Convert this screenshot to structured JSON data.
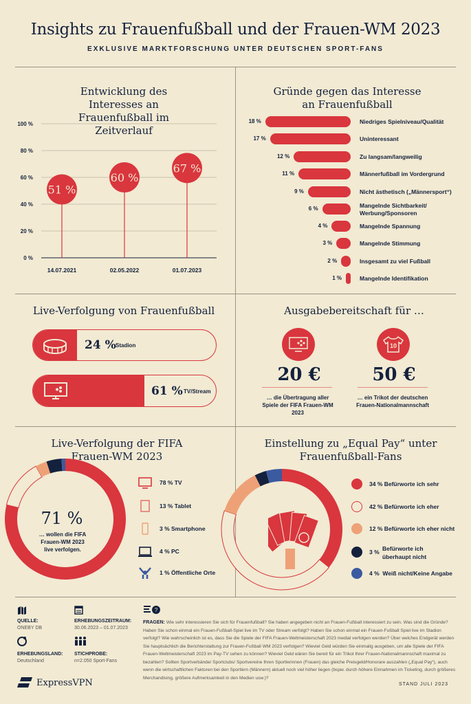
{
  "title": "Insights zu Frauenfußball und der Frauen-WM 2023",
  "subtitle": "EXKLUSIVE MARKTFORSCHUNG UNTER DEUTSCHEN SPORT-FANS",
  "colors": {
    "red": "#d9363e",
    "navy": "#14213d",
    "orange": "#eea177",
    "blue": "#3b5aa0",
    "cream": "#f2ead3"
  },
  "chart_data": [
    {
      "type": "line",
      "title": "Entwicklung des Interesses an Frauenfußball im Zeitverlauf",
      "categories": [
        "14.07.2021",
        "02.05.2022",
        "01.07.2023"
      ],
      "values": [
        51,
        60,
        67
      ],
      "labels": [
        "51 %",
        "60 %",
        "67 %"
      ],
      "ylim": [
        0,
        100
      ],
      "yticks": [
        "0 %",
        "20 %",
        "40 %",
        "60 %",
        "80 %",
        "100 %"
      ],
      "grid": true
    },
    {
      "type": "bar",
      "title": "Gründe gegen das Interesse an Frauenfußball",
      "categories": [
        "Niedriges Spielniveau/Qualität",
        "Uninteressant",
        "Zu langsam/langweilig",
        "Männerfußball im Vordergrund",
        "Nicht ästhetisch („Männersport“)",
        "Mangelnde Sichtbarkeit/ Werbung/Sponsoren",
        "Mangelnde Spannung",
        "Mangelnde Stimmung",
        "Insgesamt zu viel Fußball",
        "Mangelnde Identifikation"
      ],
      "values": [
        18,
        17,
        12,
        11,
        9,
        6,
        4,
        3,
        2,
        1
      ],
      "labels": [
        "18 %",
        "17 %",
        "12 %",
        "11 %",
        "9 %",
        "6 %",
        "4 %",
        "3 %",
        "2 %",
        "1 %"
      ]
    },
    {
      "type": "bar",
      "title": "Live-Verfolgung von Frauenfußball",
      "categories": [
        "Stadion",
        "TV/Stream"
      ],
      "values": [
        24,
        61
      ],
      "labels": [
        "24 %",
        "61 %"
      ]
    },
    {
      "type": "pie",
      "title": "Live-Verfolgung der FIFA Frauen-WM 2023",
      "center_value": "71 %",
      "center_text": "… wollen die FIFA Frauen-WM 2023 live verfolgen.",
      "categories": [
        "TV",
        "Tablet",
        "Smartphone",
        "PC",
        "Öffentliche Orte"
      ],
      "values": [
        78,
        13,
        3,
        4,
        1
      ],
      "labels": [
        "78 % TV",
        "13 % Tablet",
        "3 % Smartphone",
        "4 % PC",
        "1 % Öffentliche Orte"
      ],
      "colors": [
        "#d9363e",
        "#f2ead3",
        "#eea177",
        "#14213d",
        "#3b5aa0"
      ]
    },
    {
      "type": "pie",
      "title": "Einstellung zu „Equal Pay“ unter Frauenfußball-Fans",
      "categories": [
        "Befürworte ich sehr",
        "Befürworte ich eher",
        "Befürworte ich eher nicht",
        "Befürworte ich überhaupt nicht",
        "Weiß nicht/Keine Angabe"
      ],
      "values": [
        34,
        42,
        12,
        3,
        4
      ],
      "pct": [
        "34 %",
        "42 %",
        "12 %",
        "3 %",
        "4 %"
      ],
      "labels": [
        "34 % Befürworte ich sehr",
        "42 % Befürworte ich eher",
        "12 % Befürworte ich eher nicht",
        "Befürworte ich überhaupt nicht",
        "4 %  Weiß nicht/Keine Angabe"
      ],
      "colors": [
        "#d9363e",
        "#f2ead3",
        "#eea177",
        "#14213d",
        "#3b5aa0"
      ]
    }
  ],
  "spend": {
    "title": "Ausgabebereitschaft für …",
    "items": [
      {
        "amount": "20 €",
        "text": "… die Übertragung aller Spiele der FIFA Frauen-WM 2023",
        "icon": "tv-football-icon"
      },
      {
        "amount": "50 €",
        "text": "… ein Trikot der deutschen Frauen-Nationalmannschaft",
        "icon": "jersey-icon",
        "jersey_number": "10"
      }
    ]
  },
  "footer": {
    "source_label": "QUELLE:",
    "source": "ONEBY DB",
    "period_label": "ERHEBUNGSZEITRAUM:",
    "period": "30.06.2023 – 01.07.2023",
    "country_label": "ERHEBUNGSLAND:",
    "country": "Deutschland",
    "sample_label": "STICHPROBE:",
    "sample": "n=2.050 Sport-Fans",
    "questions_label": "FRAGEN:",
    "questions": "Wie sehr interessieren Sie sich für Frauenfußball? Sie haben angegeben nicht an Frauen-Fußball interessiert zu sein. Was sind die Gründe? Haben Sie schon einmal ein Frauen-Fußball-Spiel live im TV oder Stream verfolgt? Haben Sie schon einmal ein Frauen-Fußball Spiel live im Stadion verfolgt? Wie wahrscheinlich ist es, dass Sie die Spiele der FIFA Frauen-Weltmeisterschaft 2023 medial verfolgen werden? Über welches Endgerät werden Sie hauptsächlich die Berichterstattung zur Frauen-Fußball WM 2023 verfolgen? Wieviel Geld würden Sie einmalig ausgeben, um alle Spiele der FIFA Frauen-Weltmeisterschaft 2023 im Pay-TV sehen zu können? Wieviel Geld wären Sie bereit für ein Trikot Ihrer Frauen-Nationalmannschaft maximal zu bezahlen? Sollten Sportverbände/ Sportclubs/ Sportvereine Ihren Sportlerinnen (Frauen) das gleiche Preisgeld/Honorare auszahlen („Equal Pay“), auch wenn die wirtschaftlichen Faktoren bei den Sportlern (Männern) aktuell noch viel höher liegen (bspw. durch höhere Einnahmen im Ticketing, durch größeres Merchandising, größere Aufmerksamkeit in den Medien usw.)?",
    "brand": "ExpressVPN",
    "stand": "STAND JULI 2023"
  }
}
